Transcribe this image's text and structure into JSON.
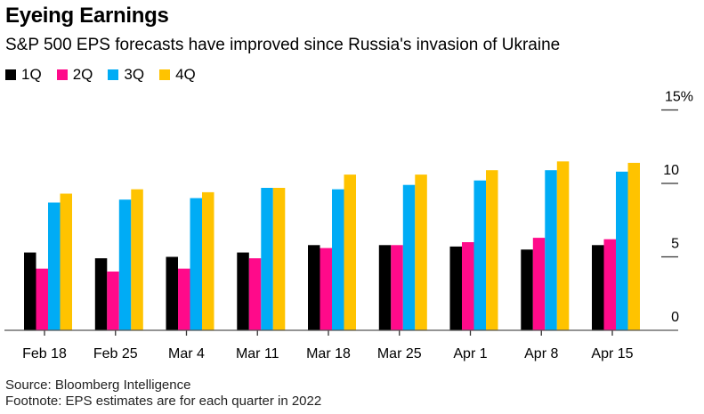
{
  "header": {
    "title": "Eyeing Earnings",
    "subtitle": "S&P 500 EPS forecasts have improved since Russia's invasion of Ukraine"
  },
  "footer": {
    "source": "Source: Bloomberg Intelligence",
    "footnote": "Footnote: EPS estimates are for each quarter in 2022"
  },
  "chart_data": {
    "type": "bar",
    "title": "Eyeing Earnings",
    "subtitle": "S&P 500 EPS forecasts have improved since Russia's invasion of Ukraine",
    "xlabel": "",
    "ylabel": "",
    "categories": [
      "Feb 18",
      "Feb 25",
      "Mar 4",
      "Mar 11",
      "Mar 18",
      "Mar 25",
      "Apr 1",
      "Apr 8",
      "Apr 15"
    ],
    "series": [
      {
        "name": "1Q",
        "color": "#000000",
        "values": [
          5.3,
          4.9,
          5.0,
          5.3,
          5.8,
          5.8,
          5.7,
          5.5,
          5.8
        ]
      },
      {
        "name": "2Q",
        "color": "#ff0a8a",
        "values": [
          4.2,
          4.0,
          4.2,
          4.9,
          5.6,
          5.8,
          6.0,
          6.3,
          6.2
        ]
      },
      {
        "name": "3Q",
        "color": "#00acf5",
        "values": [
          8.7,
          8.9,
          9.0,
          9.7,
          9.6,
          9.9,
          10.2,
          10.9,
          10.8
        ]
      },
      {
        "name": "4Q",
        "color": "#ffc300",
        "values": [
          9.3,
          9.6,
          9.4,
          9.7,
          10.6,
          10.6,
          10.9,
          11.5,
          11.4
        ]
      }
    ],
    "ylim": [
      0,
      15
    ],
    "yticks": [
      0,
      5,
      10,
      15
    ],
    "ytick_labels": [
      "0",
      "5",
      "10",
      "15%"
    ],
    "y_axis_position": "right",
    "grid": false,
    "legend": "top-left"
  }
}
